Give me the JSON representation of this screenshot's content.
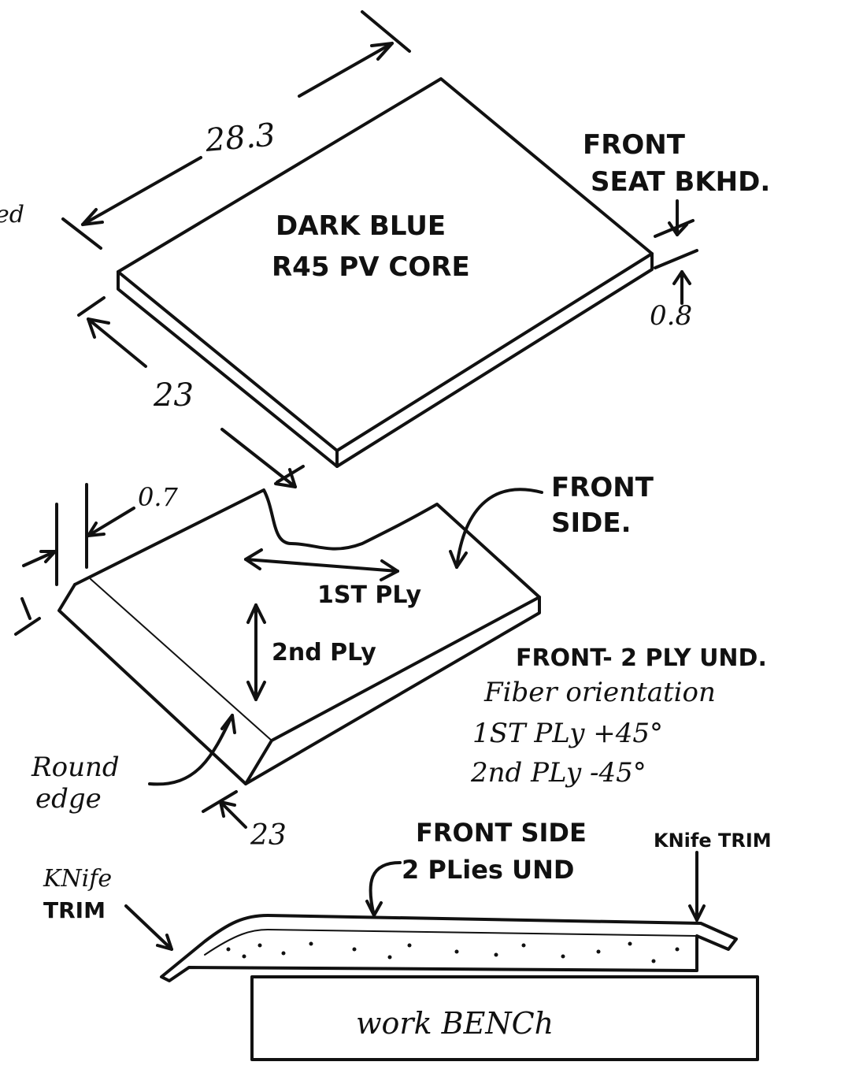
{
  "core_panel": {
    "material_line1": "DARK BLUE",
    "material_line2": "R45 PV CORE",
    "dim_length": "28.3",
    "dim_width": "23",
    "dim_thickness": "0.8",
    "location_line1": "FRONT",
    "location_line2": "SEAT BKHD.",
    "cut_off_text": "ed"
  },
  "layup_panel": {
    "dim_edge": "0.7",
    "dim_width": "23",
    "ply1_label": "1ST PLy",
    "ply2_label": "2nd PLy",
    "side_line1": "FRONT",
    "side_line2": "SIDE.",
    "edge_line1": "Round",
    "edge_line2": "edge",
    "note_line1": "FRONT- 2 PLY UND.",
    "note_line2": "Fiber orientation",
    "note_line3": "1ST PLy +45°",
    "note_line4": "2nd PLy -45°"
  },
  "bench_section": {
    "top_label_line1": "FRONT SIDE",
    "top_label_line2": "2 PLies UND",
    "right_trim": "KNife TRIM",
    "left_trim_line1": "KNife",
    "left_trim_line2": "TRIM",
    "bench_label": "work BENCh"
  }
}
